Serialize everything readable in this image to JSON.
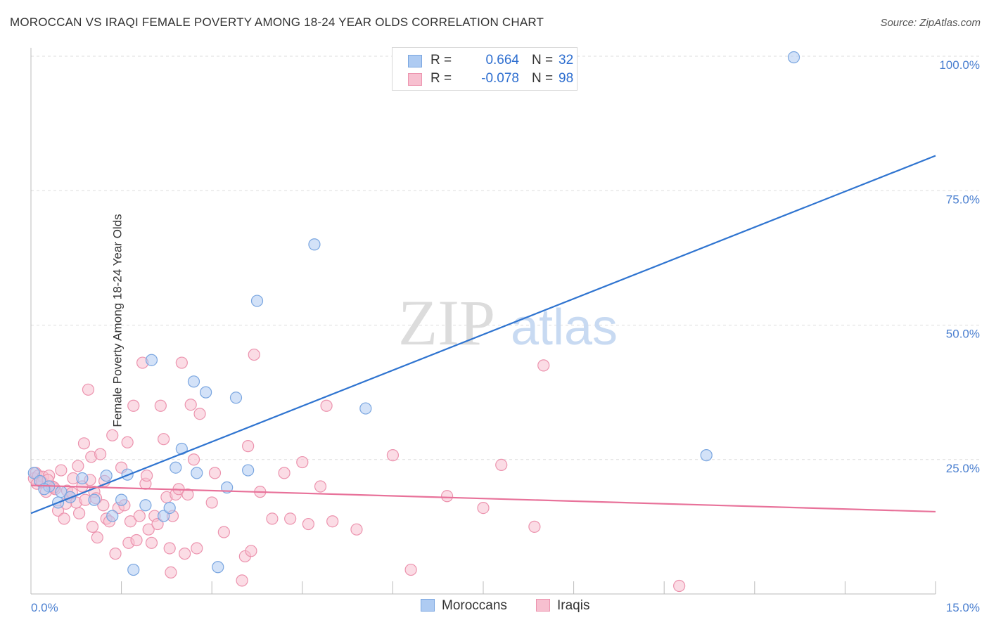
{
  "title": "MOROCCAN VS IRAQI FEMALE POVERTY AMONG 18-24 YEAR OLDS CORRELATION CHART",
  "source": "Source: ZipAtlas.com",
  "watermark": {
    "zip": "ZIP",
    "atlas": "atlas"
  },
  "legend_top": {
    "rows": [
      {
        "r_label": "R =",
        "r_value": "0.664",
        "n_label": "N =",
        "n_value": "32"
      },
      {
        "r_label": "R =",
        "r_value": "-0.078",
        "n_label": "N =",
        "n_value": "98"
      }
    ]
  },
  "legend_bottom": {
    "items": [
      "Moroccans",
      "Iraqis"
    ]
  },
  "colors": {
    "blue_fill": "#aecbf2",
    "blue_stroke": "#7aa6e0",
    "blue_line": "#2f74d0",
    "pink_fill": "#f7c0d0",
    "pink_stroke": "#ec93ae",
    "pink_line": "#e8729a",
    "tick_text": "#4a7fd0",
    "grid": "#dddddd"
  },
  "chart_data": {
    "type": "scatter",
    "title": "MOROCCAN VS IRAQI FEMALE POVERTY AMONG 18-24 YEAR OLDS CORRELATION CHART",
    "xlabel": "",
    "ylabel": "Female Poverty Among 18-24 Year Olds",
    "xlim": [
      0,
      15
    ],
    "ylim": [
      0,
      100
    ],
    "x_tick_labels": [
      "0.0%",
      "15.0%"
    ],
    "y_tick_labels": [
      "100.0%",
      "75.0%",
      "50.0%",
      "25.0%"
    ],
    "y_tick_values": [
      100,
      75,
      50,
      25
    ],
    "grid": true,
    "series": [
      {
        "name": "Moroccans",
        "r": 0.664,
        "n": 32,
        "trend": {
          "x": [
            0,
            15
          ],
          "y": [
            15,
            81.5
          ]
        },
        "points": [
          [
            0.05,
            22.5
          ],
          [
            0.15,
            21
          ],
          [
            0.3,
            20
          ],
          [
            0.5,
            19
          ],
          [
            0.65,
            18
          ],
          [
            0.85,
            21.5
          ],
          [
            1.05,
            17.5
          ],
          [
            1.25,
            22
          ],
          [
            1.35,
            14.5
          ],
          [
            1.5,
            17.5
          ],
          [
            1.6,
            22.2
          ],
          [
            1.7,
            4.5
          ],
          [
            1.9,
            16.5
          ],
          [
            2.0,
            43.5
          ],
          [
            2.2,
            14.5
          ],
          [
            2.3,
            16
          ],
          [
            2.4,
            23.5
          ],
          [
            2.5,
            27
          ],
          [
            2.7,
            39.5
          ],
          [
            2.75,
            22.5
          ],
          [
            2.9,
            37.5
          ],
          [
            3.1,
            5
          ],
          [
            3.25,
            19.8
          ],
          [
            3.4,
            36.5
          ],
          [
            3.6,
            23
          ],
          [
            3.75,
            54.5
          ],
          [
            4.7,
            65
          ],
          [
            5.55,
            34.5
          ],
          [
            11.2,
            25.8
          ],
          [
            12.65,
            99.8
          ],
          [
            0.45,
            17
          ],
          [
            0.22,
            19.5
          ]
        ]
      },
      {
        "name": "Iraqis",
        "r": -0.078,
        "n": 98,
        "trend": {
          "x": [
            0,
            15
          ],
          "y": [
            20.2,
            15.3
          ]
        },
        "points": [
          [
            0.05,
            21.5
          ],
          [
            0.08,
            22.5
          ],
          [
            0.1,
            20.5
          ],
          [
            0.12,
            22
          ],
          [
            0.15,
            21
          ],
          [
            0.2,
            21.8
          ],
          [
            0.25,
            19
          ],
          [
            0.3,
            22
          ],
          [
            0.35,
            20
          ],
          [
            0.4,
            19.5
          ],
          [
            0.45,
            15.5
          ],
          [
            0.5,
            23
          ],
          [
            0.55,
            14
          ],
          [
            0.6,
            19.2
          ],
          [
            0.65,
            18
          ],
          [
            0.7,
            21.5
          ],
          [
            0.75,
            17
          ],
          [
            0.78,
            23.8
          ],
          [
            0.8,
            15
          ],
          [
            0.85,
            20
          ],
          [
            0.88,
            28
          ],
          [
            0.9,
            17.5
          ],
          [
            0.95,
            38
          ],
          [
            1.0,
            25.5
          ],
          [
            1.02,
            12.5
          ],
          [
            1.05,
            19
          ],
          [
            1.1,
            10.5
          ],
          [
            1.15,
            26
          ],
          [
            1.2,
            16.5
          ],
          [
            1.22,
            21
          ],
          [
            1.25,
            14
          ],
          [
            1.3,
            13.5
          ],
          [
            1.35,
            29.5
          ],
          [
            1.4,
            7.5
          ],
          [
            1.45,
            16
          ],
          [
            1.5,
            23.5
          ],
          [
            1.55,
            16.5
          ],
          [
            1.6,
            28.2
          ],
          [
            1.62,
            9.5
          ],
          [
            1.65,
            13.5
          ],
          [
            1.7,
            35
          ],
          [
            1.75,
            10
          ],
          [
            1.8,
            14.5
          ],
          [
            1.85,
            43
          ],
          [
            1.9,
            20.5
          ],
          [
            1.92,
            22
          ],
          [
            1.95,
            12
          ],
          [
            2.0,
            9.5
          ],
          [
            2.05,
            14.5
          ],
          [
            2.1,
            13
          ],
          [
            2.15,
            35
          ],
          [
            2.2,
            28.8
          ],
          [
            2.25,
            18
          ],
          [
            2.3,
            8.5
          ],
          [
            2.32,
            4
          ],
          [
            2.35,
            14.5
          ],
          [
            2.4,
            18.5
          ],
          [
            2.45,
            19.5
          ],
          [
            2.5,
            43
          ],
          [
            2.55,
            7.5
          ],
          [
            2.6,
            18.5
          ],
          [
            2.65,
            35.2
          ],
          [
            2.7,
            25
          ],
          [
            2.75,
            8.5
          ],
          [
            2.8,
            33.5
          ],
          [
            3.0,
            17
          ],
          [
            3.05,
            22.5
          ],
          [
            3.2,
            11.5
          ],
          [
            3.5,
            2.5
          ],
          [
            3.55,
            7
          ],
          [
            3.6,
            27.5
          ],
          [
            3.65,
            8
          ],
          [
            3.7,
            44.5
          ],
          [
            3.8,
            19
          ],
          [
            4.0,
            14
          ],
          [
            4.2,
            22.5
          ],
          [
            4.3,
            14
          ],
          [
            4.5,
            24.5
          ],
          [
            4.6,
            13
          ],
          [
            4.8,
            20
          ],
          [
            4.9,
            35
          ],
          [
            5.0,
            13.5
          ],
          [
            5.4,
            12
          ],
          [
            6.0,
            25.8
          ],
          [
            6.3,
            4.5
          ],
          [
            6.9,
            18.2
          ],
          [
            7.5,
            16
          ],
          [
            7.8,
            24
          ],
          [
            8.5,
            42.5
          ],
          [
            8.35,
            12.5
          ],
          [
            10.75,
            1.5
          ],
          [
            0.18,
            20.8
          ],
          [
            0.28,
            21.2
          ],
          [
            0.38,
            19.8
          ],
          [
            0.58,
            16.8
          ],
          [
            0.68,
            18.8
          ],
          [
            0.98,
            21.2
          ],
          [
            1.08,
            17.8
          ]
        ]
      }
    ]
  }
}
